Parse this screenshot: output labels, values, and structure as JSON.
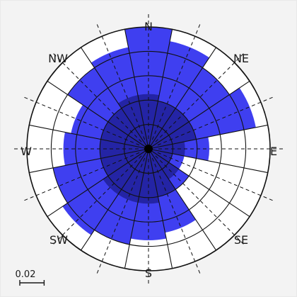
{
  "chart_data": {
    "type": "wind-rose",
    "directions": [
      "N",
      "NE",
      "E",
      "SE",
      "S",
      "SW",
      "W",
      "NW"
    ],
    "sector_count": 16,
    "sector_width_deg": 22.5,
    "radial_max": 0.1,
    "ring_step": 0.02,
    "scale_label": "0.02",
    "colors": {
      "outer_fill": "#3f3ff0",
      "inner_fill": "#1c1c8c",
      "grid": "#111111",
      "panel_bg": "#f3f3f3"
    },
    "sectors": [
      {
        "direction": "N",
        "total": 0.1,
        "inner": 0.045
      },
      {
        "direction": "NNE",
        "total": 0.09,
        "inner": 0.04
      },
      {
        "direction": "NE",
        "total": 0.08,
        "inner": 0.04
      },
      {
        "direction": "ENE",
        "total": 0.09,
        "inner": 0.04
      },
      {
        "direction": "E",
        "total": 0.05,
        "inner": 0.03
      },
      {
        "direction": "ESE",
        "total": 0.03,
        "inner": 0.02
      },
      {
        "direction": "SE",
        "total": 0.04,
        "inner": 0.03
      },
      {
        "direction": "SSE",
        "total": 0.07,
        "inner": 0.04
      },
      {
        "direction": "S",
        "total": 0.075,
        "inner": 0.045
      },
      {
        "direction": "SSW",
        "total": 0.08,
        "inner": 0.045
      },
      {
        "direction": "SW",
        "total": 0.085,
        "inner": 0.045
      },
      {
        "direction": "WSW",
        "total": 0.08,
        "inner": 0.04
      },
      {
        "direction": "W",
        "total": 0.07,
        "inner": 0.04
      },
      {
        "direction": "WNW",
        "total": 0.065,
        "inner": 0.04
      },
      {
        "direction": "NW",
        "total": 0.08,
        "inner": 0.04
      },
      {
        "direction": "NNW",
        "total": 0.085,
        "inner": 0.045
      }
    ]
  }
}
